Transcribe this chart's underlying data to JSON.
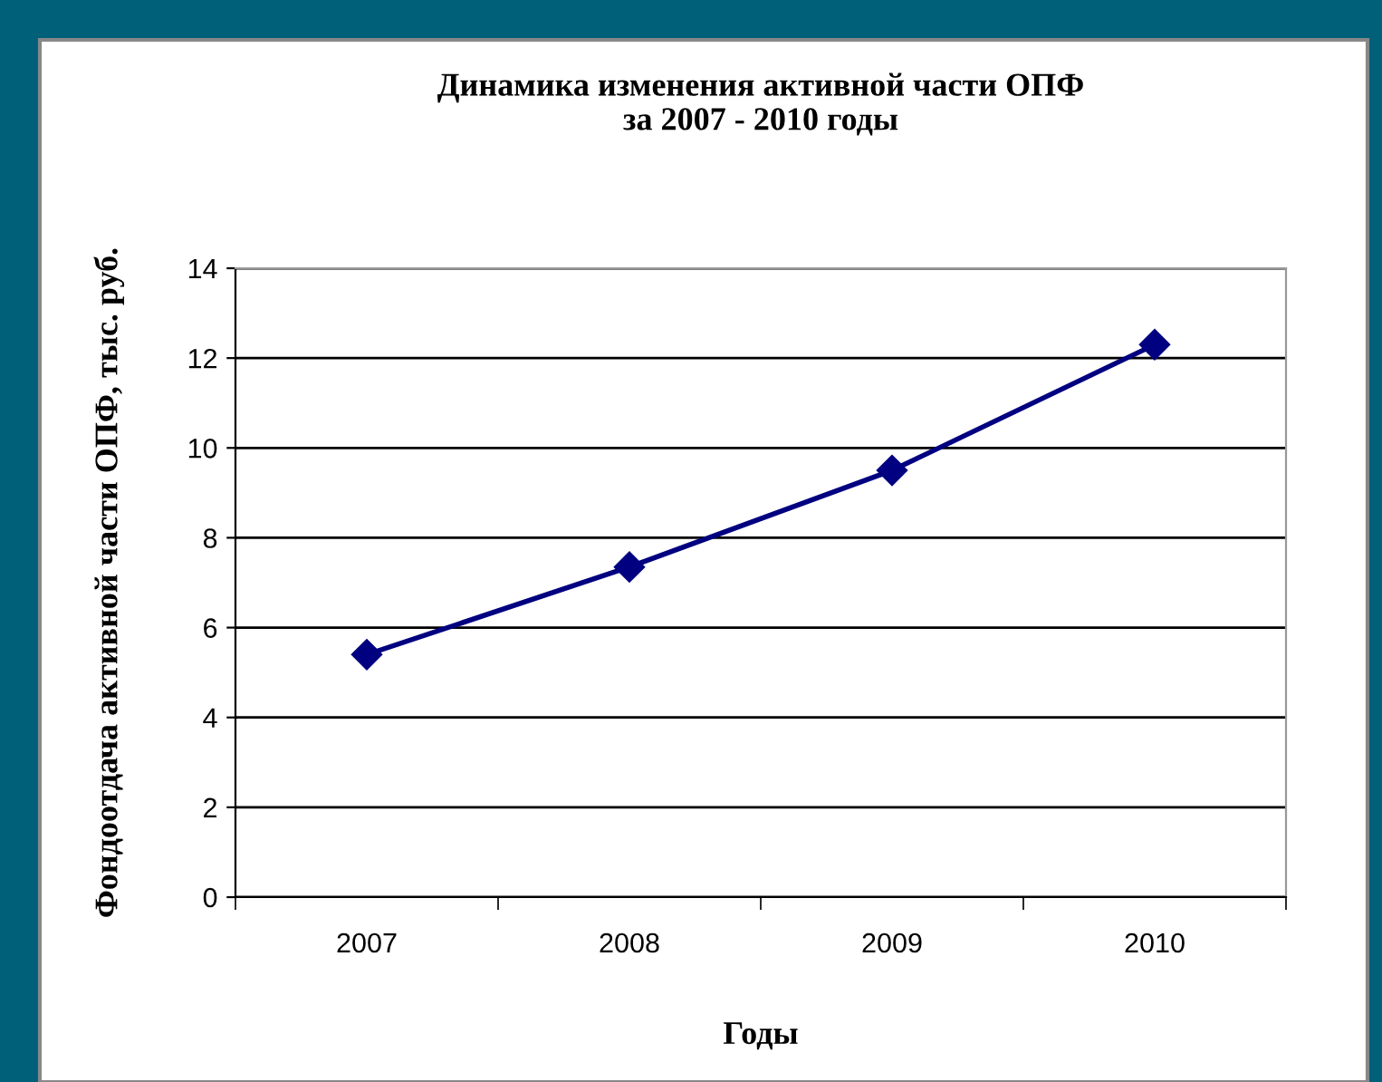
{
  "chart_data": {
    "type": "line",
    "title": "Динамика изменения активной части ОПФ\nза 2007 - 2010 годы",
    "xlabel": "Годы",
    "ylabel": "Фондоотдача активной части ОПФ, тыс. руб.",
    "categories": [
      "2007",
      "2008",
      "2009",
      "2010"
    ],
    "series": [
      {
        "color": "#000080",
        "values": [
          5.4,
          7.35,
          9.5,
          12.3
        ]
      }
    ],
    "ylim": [
      0,
      14
    ],
    "yticks": [
      0,
      2,
      4,
      6,
      8,
      10,
      12,
      14
    ],
    "grid": "y",
    "marker": "diamond",
    "line_style": "solid",
    "legend": false
  }
}
